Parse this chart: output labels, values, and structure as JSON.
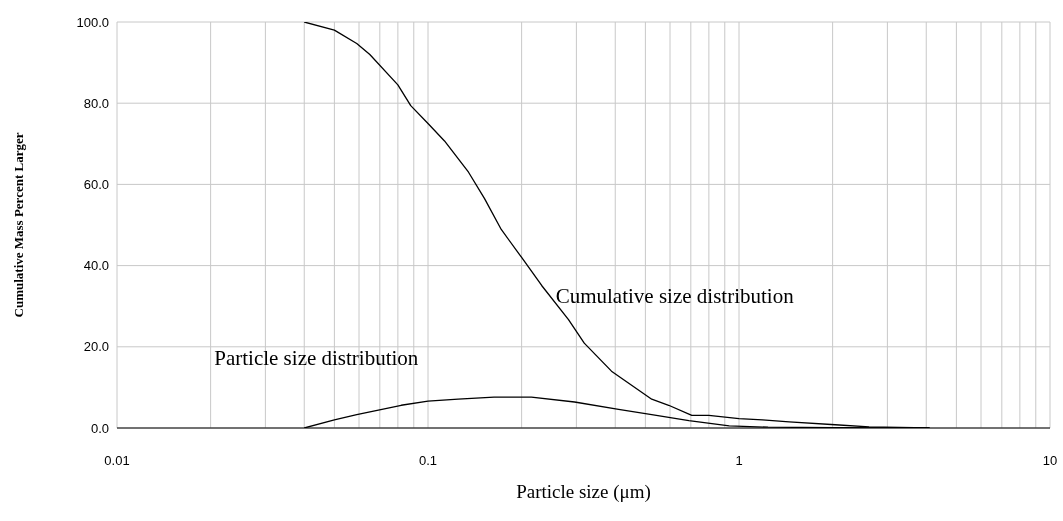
{
  "chart_data": {
    "type": "line",
    "xlabel": "Particle size  (μm)",
    "ylabel": "Cumulative Mass Percent Larger",
    "series": [
      {
        "name": "Cumulative size distribution",
        "color": "#000000",
        "x": [
          0.04,
          0.05,
          0.059,
          0.065,
          0.08,
          0.088,
          0.1,
          0.113,
          0.135,
          0.152,
          0.172,
          0.2,
          0.232,
          0.283,
          0.318,
          0.389,
          0.524,
          0.594,
          0.705,
          0.8,
          1,
          1.19,
          1.45,
          2.04,
          2.62,
          4.1
        ],
        "values": [
          100,
          98,
          94.7,
          92,
          84.5,
          79.4,
          75,
          70.7,
          63,
          56.5,
          48.9,
          42,
          35.1,
          26.7,
          20.9,
          14,
          7.1,
          5.6,
          3.1,
          3.1,
          2.3,
          2,
          1.5,
          0.8,
          0.3,
          0
        ]
      },
      {
        "name": "Particle size distribution",
        "color": "#000000",
        "x": [
          0.04,
          0.05,
          0.059,
          0.082,
          0.1,
          0.125,
          0.163,
          0.215,
          0.296,
          0.41,
          0.524,
          0.69,
          0.93,
          1.24,
          2.04,
          4.1
        ],
        "values": [
          0,
          2,
          3.3,
          5.6,
          6.6,
          7.1,
          7.6,
          7.6,
          6.4,
          4.6,
          3.3,
          1.8,
          0.5,
          0.2,
          0.1,
          0
        ]
      }
    ],
    "log": "x",
    "xlim": [
      0.01,
      10
    ],
    "xticks": [
      0.01,
      {
        "value": 0.02,
        "label": null
      },
      {
        "value": 0.03,
        "label": null
      },
      {
        "value": 0.04,
        "label": null
      },
      {
        "value": 0.05,
        "label": null
      },
      {
        "value": 0.06,
        "label": null
      },
      {
        "value": 0.07,
        "label": null
      },
      {
        "value": 0.08,
        "label": null
      },
      {
        "value": 0.09,
        "label": null
      },
      0.1,
      {
        "value": 0.2,
        "label": null
      },
      {
        "value": 0.3,
        "label": null
      },
      {
        "value": 0.4,
        "label": null
      },
      {
        "value": 0.5,
        "label": null
      },
      {
        "value": 0.6,
        "label": null
      },
      {
        "value": 0.7,
        "label": null
      },
      {
        "value": 0.8,
        "label": null
      },
      {
        "value": 0.9,
        "label": null
      },
      1,
      {
        "value": 2,
        "label": null
      },
      {
        "value": 3,
        "label": null
      },
      {
        "value": 4,
        "label": null
      },
      {
        "value": 5,
        "label": null
      },
      {
        "value": 6,
        "label": null
      },
      {
        "value": 7,
        "label": null
      },
      {
        "value": 8,
        "label": null
      },
      {
        "value": 9,
        "label": null
      },
      10
    ],
    "ylim": [
      0,
      100
    ],
    "yticks": [
      {
        "value": 0,
        "label": "0.0"
      },
      {
        "value": 20,
        "label": "20.0"
      },
      {
        "value": 40,
        "label": "40.0"
      },
      {
        "value": 60,
        "label": "60.0"
      },
      {
        "value": 80,
        "label": "80.0"
      },
      {
        "value": 100,
        "label": "100.0"
      }
    ],
    "grid": true,
    "marker": "none",
    "line_style": "solid"
  }
}
